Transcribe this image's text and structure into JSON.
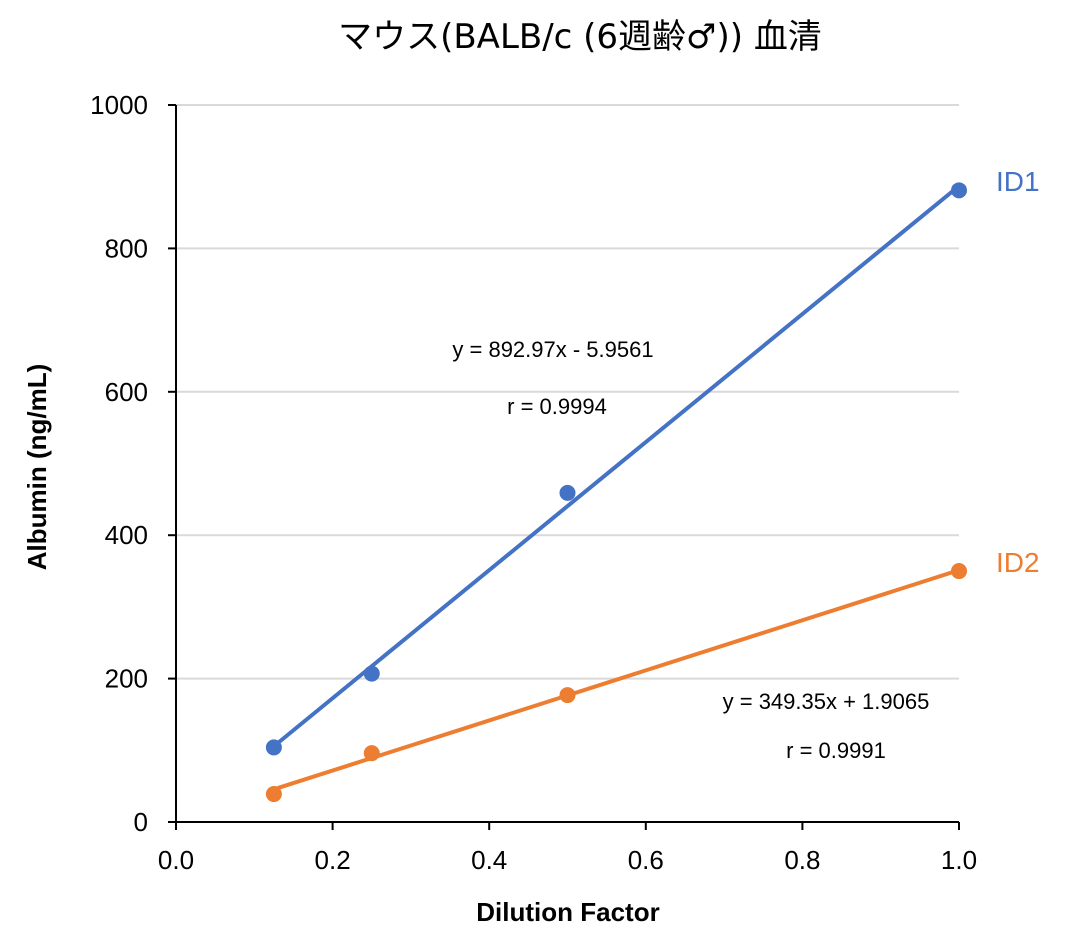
{
  "chart_data": {
    "type": "scatter",
    "title": "マウス(BALB/c (6週齢♂)) 血清",
    "xlabel": "Dilution Factor",
    "ylabel": "Albumin (ng/mL)",
    "xlim": [
      0.0,
      1.0
    ],
    "ylim": [
      0,
      1000
    ],
    "x_ticks": [
      "0.0",
      "0.2",
      "0.4",
      "0.6",
      "0.8",
      "1.0"
    ],
    "y_ticks": [
      "0",
      "200",
      "400",
      "600",
      "800",
      "1000"
    ],
    "grid": "horizontal",
    "series": [
      {
        "name": "ID1",
        "color": "#4472C4",
        "x": [
          0.125,
          0.25,
          0.5,
          1.0
        ],
        "y": [
          104,
          207,
          459,
          881
        ],
        "trendline": {
          "slope": 892.97,
          "intercept": -5.9561
        },
        "equation": "y = 892.97x - 5.9561",
        "r_text": "r = 0.9994"
      },
      {
        "name": "ID2",
        "color": "#ED7D31",
        "x": [
          0.125,
          0.25,
          0.5,
          1.0
        ],
        "y": [
          39,
          96,
          177,
          350
        ],
        "trendline": {
          "slope": 349.35,
          "intercept": 1.9065
        },
        "equation": "y = 349.35x + 1.9065",
        "r_text": "r = 0.9991"
      }
    ]
  }
}
